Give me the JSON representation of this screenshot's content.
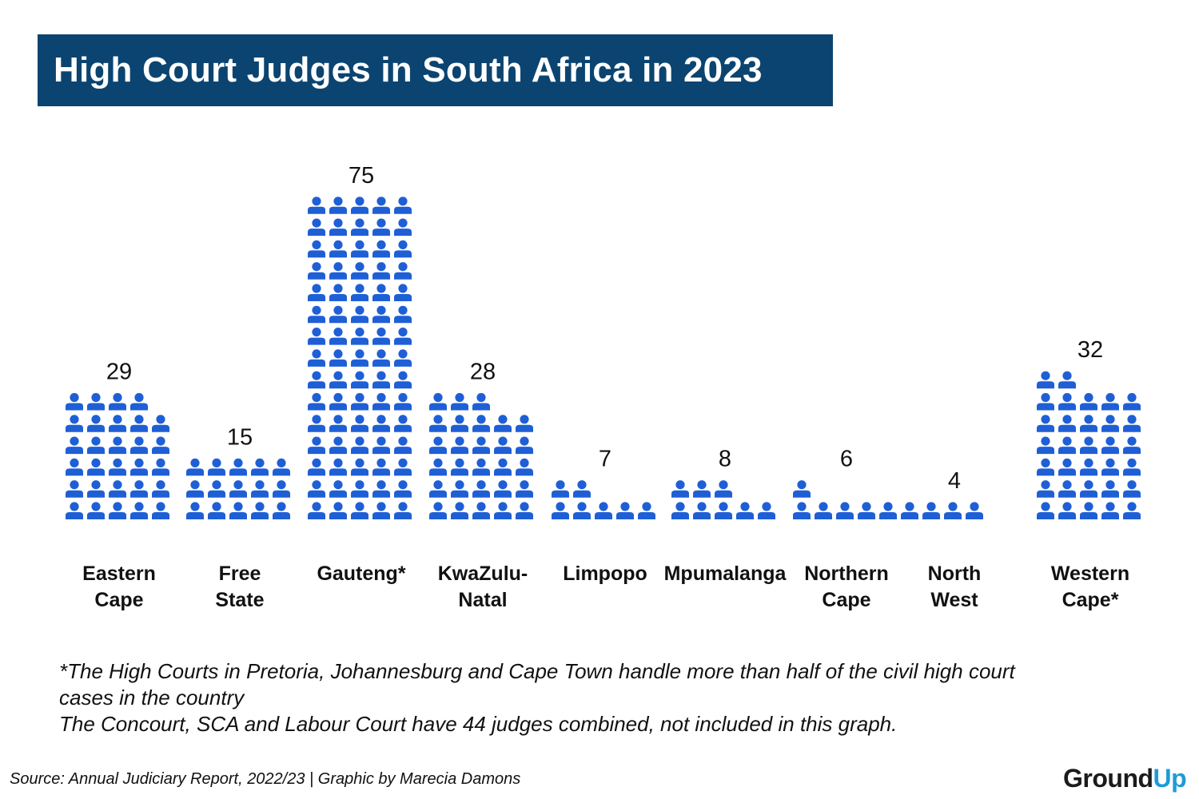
{
  "title": "High Court Judges in South Africa in 2023",
  "chart_data": {
    "type": "bar",
    "title": "High Court Judges in South Africa in 2023",
    "categories": [
      [
        "Eastern",
        "Cape"
      ],
      [
        "Free",
        "State"
      ],
      [
        "Gauteng*"
      ],
      [
        "KwaZulu-",
        "Natal"
      ],
      [
        "Limpopo"
      ],
      [
        "Mpumalanga"
      ],
      [
        "Northern",
        "Cape"
      ],
      [
        "North",
        "West"
      ],
      [
        "Western",
        "Cape*"
      ]
    ],
    "values": [
      29,
      15,
      75,
      28,
      7,
      8,
      6,
      4,
      32
    ],
    "value_labels": [
      "29",
      "15",
      "75",
      "28",
      "7",
      "8",
      "6",
      "4",
      "32"
    ],
    "icon": "person-icon",
    "icons_per_row": 5,
    "icon_color": "#1f5fd6"
  },
  "notes": [
    "*The High Courts in Pretoria, Johannesburg and Cape Town handle more than half of the civil  high court",
    "cases in the country",
    "The Concourt, SCA and Labour Court have 44 judges combined, not included in this graph."
  ],
  "source": "Source: Annual Judiciary Report, 2022/23 | Graphic by Marecia Damons",
  "logo": {
    "part1": "Grou",
    "part2": "nd",
    "part3": "Up"
  },
  "colors": {
    "title_bg": "#0b4470",
    "title_text": "#ffffff",
    "icon": "#1f5fd6",
    "logo_dark": "#1b1b1b",
    "logo_blue": "#1e9bd7"
  }
}
